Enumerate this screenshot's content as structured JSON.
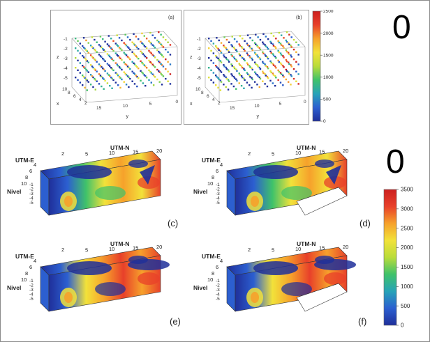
{
  "colors": {
    "scale": [
      "#1f2f9a",
      "#2c5fd0",
      "#27a3b8",
      "#3fc26a",
      "#b9dc3a",
      "#f2e23a",
      "#f6a12b",
      "#e8402a",
      "#cc1f1f"
    ]
  },
  "big_zero_top": "0",
  "big_zero_mid": "0",
  "panel_a": {
    "tag": "(a)",
    "z_axis": "z",
    "x_axis": "x",
    "y_axis": "y",
    "z_ticks": [
      "-1",
      "-2",
      "-3",
      "-4",
      "-5"
    ],
    "x_ticks": [
      "10",
      "8",
      "6",
      "4",
      "2"
    ],
    "y_ticks": [
      "15",
      "10",
      "5",
      "0"
    ]
  },
  "panel_b": {
    "tag": "(b)",
    "z_axis": "z",
    "x_axis": "x",
    "y_axis": "y",
    "z_ticks": [
      "-1",
      "-2",
      "-3",
      "-4",
      "-5"
    ],
    "x_ticks": [
      "10",
      "8",
      "6",
      "4",
      "2"
    ],
    "y_ticks": [
      "15",
      "10",
      "5",
      "0"
    ]
  },
  "colorbar_top": {
    "ticks": [
      "2500",
      "2000",
      "1500",
      "1000",
      "500",
      "0"
    ]
  },
  "colorbar_bottom": {
    "ticks": [
      "3500",
      "3000",
      "2500",
      "2000",
      "1500",
      "1000",
      "500",
      "0"
    ]
  },
  "blocks": [
    {
      "tag": "(c)",
      "utm_e": "UTM-E",
      "utm_n": "UTM-N",
      "nivel": "Nivel",
      "top_ticks": [
        "2",
        "5",
        "10",
        "15",
        "20"
      ],
      "left_ticks": [
        "4",
        "6",
        "8",
        "10"
      ],
      "z_ticks": [
        "-1",
        "-2",
        "-3",
        "-4",
        "-5"
      ]
    },
    {
      "tag": "(d)",
      "utm_e": "UTM-E",
      "utm_n": "UTM-N",
      "nivel": "Nivel",
      "top_ticks": [
        "2",
        "5",
        "10",
        "15",
        "20"
      ],
      "left_ticks": [
        "4",
        "6",
        "8",
        "10"
      ],
      "z_ticks": [
        "-1",
        "-2",
        "-3",
        "-4",
        "-5"
      ]
    },
    {
      "tag": "(e)",
      "utm_e": "UTM-E",
      "utm_n": "UTM-N",
      "nivel": "Nivel",
      "top_ticks": [
        "2",
        "5",
        "10",
        "15",
        "20"
      ],
      "left_ticks": [
        "4",
        "6",
        "8",
        "10"
      ],
      "z_ticks": [
        "-1",
        "-2",
        "-3",
        "-4",
        "-5"
      ]
    },
    {
      "tag": "(f)",
      "utm_e": "UTM-E",
      "utm_n": "UTM-N",
      "nivel": "Nivel",
      "top_ticks": [
        "2",
        "5",
        "10",
        "15",
        "20"
      ],
      "left_ticks": [
        "4",
        "6",
        "8",
        "10"
      ],
      "z_ticks": [
        "-1",
        "-2",
        "-3",
        "-4",
        "-5"
      ]
    }
  ]
}
